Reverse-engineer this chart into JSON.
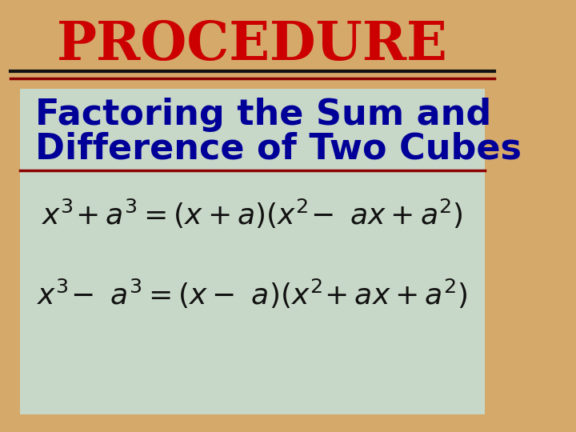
{
  "title": "PROCEDURE",
  "title_color": "#CC0000",
  "title_fontsize": 48,
  "subtitle_line1": "Factoring the Sum and",
  "subtitle_line2": "Difference of Two Cubes",
  "subtitle_color": "#000099",
  "subtitle_fontsize": 32,
  "formula_color": "#111111",
  "formula_fontsize": 26,
  "bg_color": "#D4A96A",
  "box_color": "#C8D8C8",
  "line_black": "#111111",
  "line_red": "#8B0000"
}
